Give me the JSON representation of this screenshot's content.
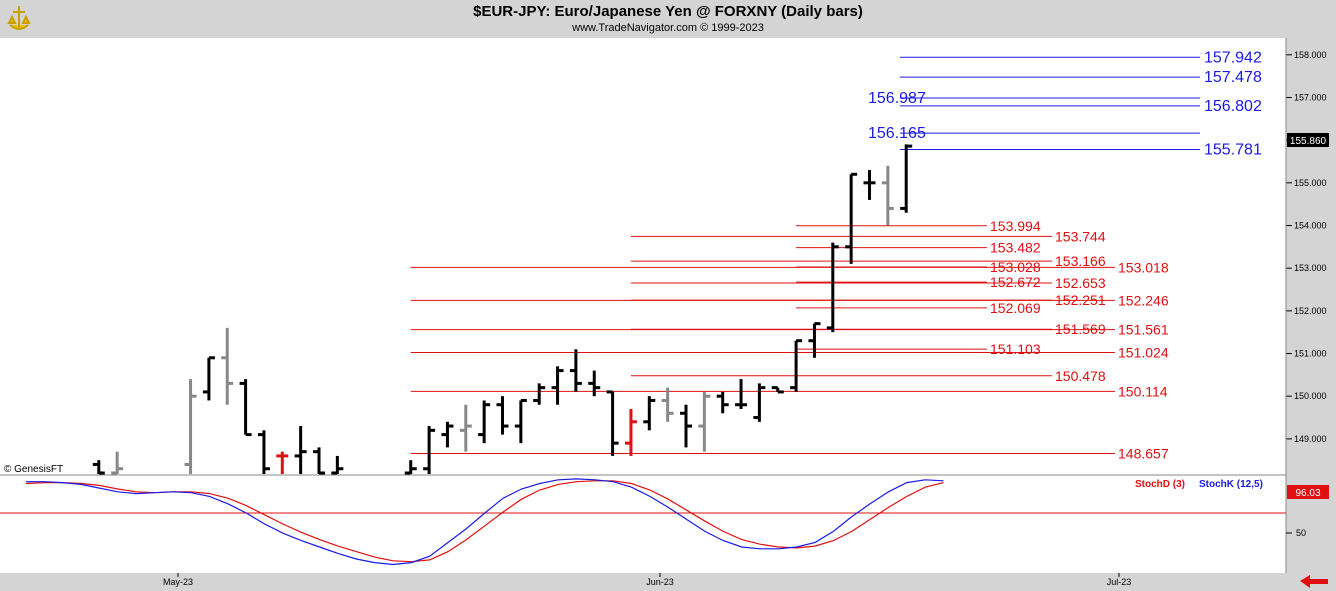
{
  "header": {
    "title": "$EUR-JPY:  Euro/Japanese Yen @ FORXNY  (Daily bars)",
    "subtitle": "www.TradeNavigator.com © 1999-2023"
  },
  "watermark": "© GenesisFT",
  "current_price": "155.860",
  "stoch_current": "96.03",
  "stoch_legend": {
    "d": "StochD (3)",
    "k": "StochK (12,5)"
  },
  "colors": {
    "blue": "#1a1ae6",
    "red": "#e01010",
    "black": "#000000",
    "gray": "#888888"
  },
  "chart_data": {
    "type": "ohlc",
    "x_tick_labels": [
      "May-23",
      "Jun-23",
      "Jul-23"
    ],
    "y_ticks": [
      149,
      150,
      151,
      152,
      153,
      154,
      155,
      156,
      157,
      158
    ],
    "y_tick_labels": [
      "149.000",
      "150.000",
      "151.000",
      "152.000",
      "153.000",
      "154.000",
      "155.000",
      "",
      "157.000",
      "158.000"
    ],
    "ylim": [
      148.2,
      158.3
    ],
    "bars": [
      {
        "i": -12,
        "o": 148.4,
        "h": 148.5,
        "l": 148.1,
        "c": 148.2,
        "col": "black"
      },
      {
        "i": -11,
        "o": 148.2,
        "h": 148.7,
        "l": 148.1,
        "c": 148.3,
        "col": "gray"
      },
      {
        "i": -7,
        "o": 148.4,
        "h": 150.4,
        "l": 148.1,
        "c": 150.0,
        "col": "gray"
      },
      {
        "i": -6,
        "o": 150.1,
        "h": 150.9,
        "l": 149.9,
        "c": 150.9,
        "col": "black"
      },
      {
        "i": -5,
        "o": 150.9,
        "h": 151.6,
        "l": 149.8,
        "c": 150.3,
        "col": "gray"
      },
      {
        "i": -4,
        "o": 150.3,
        "h": 150.4,
        "l": 149.1,
        "c": 149.1,
        "col": "black"
      },
      {
        "i": -3,
        "o": 149.1,
        "h": 149.2,
        "l": 148.1,
        "c": 148.3,
        "col": "black"
      },
      {
        "i": -2,
        "o": 148.6,
        "h": 148.7,
        "l": 148.1,
        "c": 148.6,
        "col": "red"
      },
      {
        "i": -1,
        "o": 148.6,
        "h": 149.3,
        "l": 148.1,
        "c": 148.7,
        "col": "black"
      },
      {
        "i": 0,
        "o": 148.7,
        "h": 148.8,
        "l": 148.1,
        "c": 148.2,
        "col": "black"
      },
      {
        "i": 1,
        "o": 148.2,
        "h": 148.6,
        "l": 148.1,
        "c": 148.3,
        "col": "black"
      },
      {
        "i": 5,
        "o": 148.2,
        "h": 148.5,
        "l": 148.1,
        "c": 148.3,
        "col": "black"
      },
      {
        "i": 6,
        "o": 148.3,
        "h": 149.3,
        "l": 148.1,
        "c": 149.2,
        "col": "black"
      },
      {
        "i": 7,
        "o": 149.1,
        "h": 149.4,
        "l": 148.8,
        "c": 149.3,
        "col": "black"
      },
      {
        "i": 8,
        "o": 149.2,
        "h": 149.8,
        "l": 148.7,
        "c": 149.3,
        "col": "gray"
      },
      {
        "i": 9,
        "o": 149.1,
        "h": 149.9,
        "l": 148.9,
        "c": 149.8,
        "col": "black"
      },
      {
        "i": 10,
        "o": 149.8,
        "h": 150.0,
        "l": 149.1,
        "c": 149.3,
        "col": "black"
      },
      {
        "i": 11,
        "o": 149.3,
        "h": 149.9,
        "l": 148.9,
        "c": 149.9,
        "col": "black"
      },
      {
        "i": 12,
        "o": 149.9,
        "h": 150.3,
        "l": 149.8,
        "c": 150.2,
        "col": "black"
      },
      {
        "i": 13,
        "o": 150.2,
        "h": 150.7,
        "l": 149.8,
        "c": 150.6,
        "col": "black"
      },
      {
        "i": 14,
        "o": 150.6,
        "h": 151.1,
        "l": 150.1,
        "c": 150.3,
        "col": "black"
      },
      {
        "i": 15,
        "o": 150.3,
        "h": 150.6,
        "l": 150.0,
        "c": 150.2,
        "col": "black"
      },
      {
        "i": 16,
        "o": 150.1,
        "h": 150.1,
        "l": 148.6,
        "c": 148.9,
        "col": "black"
      },
      {
        "i": 17,
        "o": 148.9,
        "h": 149.7,
        "l": 148.6,
        "c": 149.4,
        "col": "red"
      },
      {
        "i": 18,
        "o": 149.4,
        "h": 150.0,
        "l": 149.2,
        "c": 149.9,
        "col": "black"
      },
      {
        "i": 19,
        "o": 149.9,
        "h": 150.2,
        "l": 149.4,
        "c": 149.6,
        "col": "gray"
      },
      {
        "i": 20,
        "o": 149.6,
        "h": 149.8,
        "l": 148.8,
        "c": 149.3,
        "col": "black"
      },
      {
        "i": 21,
        "o": 149.3,
        "h": 150.1,
        "l": 148.7,
        "c": 150.0,
        "col": "gray"
      },
      {
        "i": 22,
        "o": 150.0,
        "h": 150.1,
        "l": 149.6,
        "c": 149.8,
        "col": "black"
      },
      {
        "i": 23,
        "o": 149.8,
        "h": 150.4,
        "l": 149.7,
        "c": 149.8,
        "col": "black"
      },
      {
        "i": 24,
        "o": 149.5,
        "h": 150.3,
        "l": 149.4,
        "c": 150.2,
        "col": "black"
      },
      {
        "i": 25,
        "o": 150.2,
        "h": 150.2,
        "l": 150.1,
        "c": 150.1,
        "col": "black"
      },
      {
        "i": 26,
        "o": 150.2,
        "h": 151.3,
        "l": 150.1,
        "c": 151.3,
        "col": "black"
      },
      {
        "i": 27,
        "o": 151.3,
        "h": 151.7,
        "l": 150.9,
        "c": 151.7,
        "col": "black"
      },
      {
        "i": 28,
        "o": 151.6,
        "h": 153.6,
        "l": 151.5,
        "c": 153.5,
        "col": "black"
      },
      {
        "i": 29,
        "o": 153.5,
        "h": 155.2,
        "l": 153.1,
        "c": 155.2,
        "col": "black"
      },
      {
        "i": 30,
        "o": 155.0,
        "h": 155.3,
        "l": 154.6,
        "c": 155.0,
        "col": "black"
      },
      {
        "i": 31,
        "o": 155.0,
        "h": 155.4,
        "l": 154.0,
        "c": 154.4,
        "col": "gray"
      },
      {
        "i": 32,
        "o": 154.4,
        "h": 155.9,
        "l": 154.3,
        "c": 155.86,
        "col": "black"
      }
    ],
    "levels": [
      {
        "value": 157.942,
        "label": "157.942",
        "color": "blue",
        "from": 31,
        "to": 2,
        "lx": 2
      },
      {
        "value": 157.478,
        "label": "157.478",
        "color": "blue",
        "from": 31,
        "to": 2,
        "lx": 2
      },
      {
        "value": 156.987,
        "label": "156.987",
        "color": "blue",
        "from": 31,
        "to": 31,
        "lx": 1
      },
      {
        "value": 156.802,
        "label": "156.802",
        "color": "blue",
        "from": 31,
        "to": 2,
        "lx": 2
      },
      {
        "value": 156.165,
        "label": "156.165",
        "color": "blue",
        "from": 31,
        "to": 2,
        "lx": 1
      },
      {
        "value": 155.781,
        "label": "155.781",
        "color": "blue",
        "from": 31,
        "to": 2,
        "lx": 2
      },
      {
        "value": 153.994,
        "label": "153.994",
        "color": "red",
        "from": 26,
        "to": 0,
        "lx": 0
      },
      {
        "value": 153.744,
        "label": "153.744",
        "color": "red",
        "from": 17,
        "to": 0,
        "lx": 1
      },
      {
        "value": 153.482,
        "label": "153.482",
        "color": "red",
        "from": 26,
        "to": 0,
        "lx": 0
      },
      {
        "value": 153.166,
        "label": "153.166",
        "color": "red",
        "from": 17,
        "to": 0,
        "lx": 1
      },
      {
        "value": 153.028,
        "label": "153.028",
        "color": "red",
        "from": 26,
        "to": 0,
        "lx": 0
      },
      {
        "value": 153.018,
        "label": "153.018",
        "color": "red",
        "from": 5,
        "to": 0,
        "lx": 2
      },
      {
        "value": 152.672,
        "label": "152.672",
        "color": "red",
        "from": 26,
        "to": 0,
        "lx": 0
      },
      {
        "value": 152.653,
        "label": "152.653",
        "color": "red",
        "from": 17,
        "to": 0,
        "lx": 1
      },
      {
        "value": 152.251,
        "label": "152.251",
        "color": "red",
        "from": 17,
        "to": 0,
        "lx": 1
      },
      {
        "value": 152.246,
        "label": "152.246",
        "color": "red",
        "from": 5,
        "to": 0,
        "lx": 2
      },
      {
        "value": 152.069,
        "label": "152.069",
        "color": "red",
        "from": 26,
        "to": 0,
        "lx": 0
      },
      {
        "value": 151.569,
        "label": "151.569",
        "color": "red",
        "from": 17,
        "to": 0,
        "lx": 1
      },
      {
        "value": 151.561,
        "label": "151.561",
        "color": "red",
        "from": 5,
        "to": 0,
        "lx": 2
      },
      {
        "value": 151.103,
        "label": "151.103",
        "color": "red",
        "from": 26,
        "to": 0,
        "lx": 0
      },
      {
        "value": 151.024,
        "label": "151.024",
        "color": "red",
        "from": 5,
        "to": 0,
        "lx": 2
      },
      {
        "value": 150.478,
        "label": "150.478",
        "color": "red",
        "from": 17,
        "to": 0,
        "lx": 1
      },
      {
        "value": 150.114,
        "label": "150.114",
        "color": "red",
        "from": 5,
        "to": 0,
        "lx": 2
      },
      {
        "value": 148.657,
        "label": "148.657",
        "color": "red",
        "from": 5,
        "to": 0,
        "lx": 2
      }
    ],
    "stoch": {
      "ylim": [
        0,
        100
      ],
      "y_tick_labels": [
        "50"
      ],
      "k": [
        96,
        96,
        95,
        93,
        89,
        85,
        83,
        84,
        85,
        84,
        80,
        72,
        62,
        50,
        40,
        32,
        25,
        18,
        12,
        8,
        6,
        8,
        15,
        30,
        45,
        62,
        78,
        88,
        94,
        98,
        99,
        98,
        96,
        90,
        80,
        68,
        55,
        42,
        32,
        25,
        23,
        23,
        25,
        30,
        42,
        58,
        72,
        85,
        95,
        98,
        97
      ],
      "d": [
        94,
        95,
        95,
        94,
        92,
        88,
        85,
        84,
        85,
        85,
        83,
        78,
        70,
        60,
        50,
        41,
        33,
        26,
        20,
        14,
        10,
        9,
        11,
        20,
        33,
        48,
        63,
        77,
        87,
        93,
        96,
        97,
        97,
        94,
        87,
        77,
        65,
        53,
        42,
        33,
        28,
        25,
        24,
        26,
        32,
        42,
        55,
        68,
        80,
        90,
        95
      ]
    }
  }
}
